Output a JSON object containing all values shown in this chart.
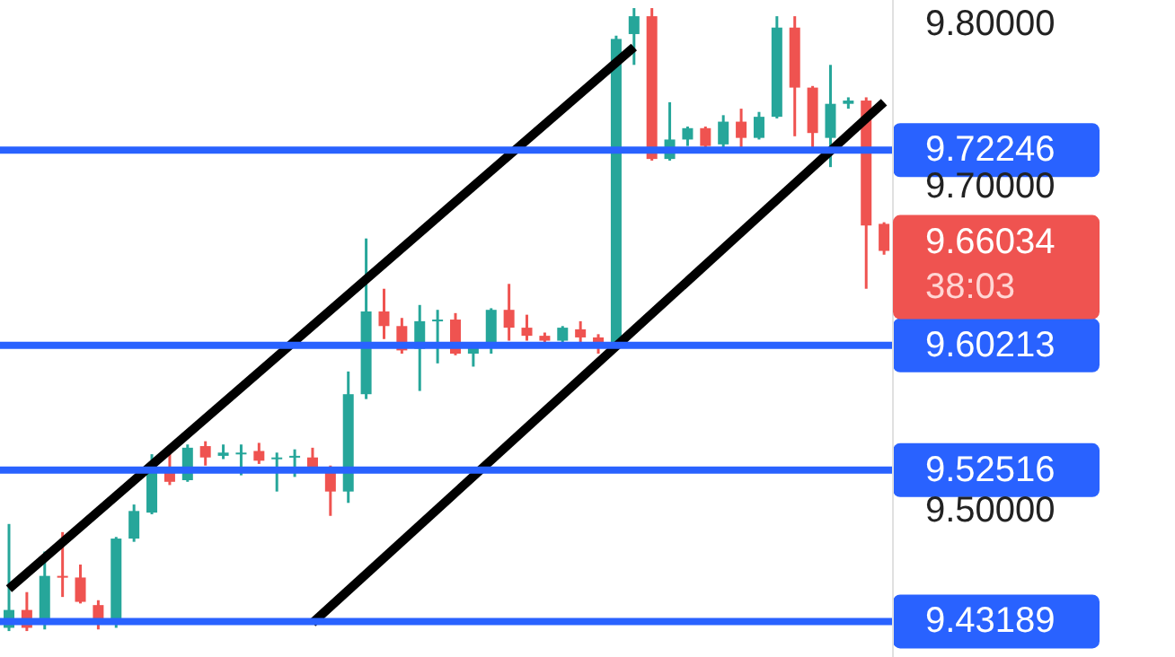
{
  "chart_data": {
    "type": "candlestick",
    "categories": [
      null,
      null,
      null,
      null,
      null,
      null,
      null,
      null,
      null,
      null,
      null,
      null,
      null,
      null,
      null,
      null,
      null,
      null,
      null,
      null,
      null,
      null,
      null,
      null,
      null,
      null,
      null,
      null,
      null,
      null,
      null,
      null,
      null,
      null,
      null,
      null,
      null,
      null,
      null,
      null,
      null,
      null,
      null,
      null,
      null,
      null,
      null,
      null,
      null,
      null
    ],
    "ohlc": [
      [
        9.428,
        9.492,
        9.426,
        9.439
      ],
      [
        9.439,
        9.45,
        9.426,
        9.428
      ],
      [
        9.43,
        9.475,
        9.427,
        9.46
      ],
      [
        9.46,
        9.487,
        9.447,
        9.459
      ],
      [
        9.459,
        9.467,
        9.443,
        9.444
      ],
      [
        9.442,
        9.445,
        9.427,
        9.432
      ],
      [
        9.43,
        9.484,
        9.428,
        9.483
      ],
      [
        9.483,
        9.504,
        9.481,
        9.5
      ],
      [
        9.499,
        9.535,
        9.498,
        9.527
      ],
      [
        9.527,
        9.537,
        9.516,
        9.518
      ],
      [
        9.519,
        9.541,
        9.518,
        9.539
      ],
      [
        9.54,
        9.543,
        9.528,
        9.533
      ],
      [
        9.534,
        9.541,
        9.532,
        9.536
      ],
      [
        9.535,
        9.541,
        9.522,
        9.536
      ],
      [
        9.537,
        9.542,
        9.529,
        9.531
      ],
      [
        9.532,
        9.536,
        9.512,
        9.533
      ],
      [
        9.533,
        9.538,
        9.521,
        9.534
      ],
      [
        9.533,
        9.539,
        9.526,
        9.527
      ],
      [
        9.527,
        9.528,
        9.497,
        9.512
      ],
      [
        9.512,
        9.586,
        9.505,
        9.572
      ],
      [
        9.572,
        9.668,
        9.569,
        9.623
      ],
      [
        9.623,
        9.637,
        9.606,
        9.614
      ],
      [
        9.614,
        9.619,
        9.597,
        9.599
      ],
      [
        9.6,
        9.627,
        9.574,
        9.617
      ],
      [
        9.617,
        9.624,
        9.591,
        9.618
      ],
      [
        9.618,
        9.622,
        9.596,
        9.597
      ],
      [
        9.597,
        9.603,
        9.589,
        9.601
      ],
      [
        9.601,
        9.625,
        9.597,
        9.624
      ],
      [
        9.624,
        9.64,
        9.605,
        9.613
      ],
      [
        9.613,
        9.621,
        9.605,
        9.608
      ],
      [
        9.608,
        9.61,
        9.604,
        9.605
      ],
      [
        9.605,
        9.614,
        9.604,
        9.613
      ],
      [
        9.612,
        9.617,
        9.604,
        9.607
      ],
      [
        9.607,
        9.609,
        9.597,
        9.602
      ],
      [
        9.602,
        9.793,
        9.601,
        9.791
      ],
      [
        9.794,
        9.81,
        9.775,
        9.805
      ],
      [
        9.805,
        9.81,
        9.716,
        9.717
      ],
      [
        9.717,
        9.752,
        9.716,
        9.729
      ],
      [
        9.729,
        9.737,
        9.725,
        9.736
      ],
      [
        9.736,
        9.737,
        9.723,
        9.725
      ],
      [
        9.726,
        9.744,
        9.723,
        9.74
      ],
      [
        9.74,
        9.748,
        9.722,
        9.73
      ],
      [
        9.73,
        9.746,
        9.729,
        9.743
      ],
      [
        9.743,
        9.805,
        9.742,
        9.798
      ],
      [
        9.798,
        9.805,
        9.731,
        9.761
      ],
      [
        9.761,
        9.762,
        9.722,
        9.733
      ],
      [
        9.73,
        9.775,
        9.712,
        9.751
      ],
      [
        9.751,
        9.755,
        9.748,
        9.753
      ],
      [
        9.753,
        9.755,
        9.637,
        9.676
      ],
      [
        9.677,
        9.678,
        9.658,
        9.66034
      ]
    ],
    "colors": [
      "#26a69a",
      "#ef5350",
      "#26a69a",
      "#ef5350",
      "#ef5350",
      "#ef5350",
      "#26a69a",
      "#26a69a",
      "#26a69a",
      "#ef5350",
      "#26a69a",
      "#ef5350",
      "#26a69a",
      "#26a69a",
      "#ef5350",
      "#26a69a",
      "#26a69a",
      "#ef5350",
      "#ef5350",
      "#26a69a",
      "#26a69a",
      "#ef5350",
      "#ef5350",
      "#26a69a",
      "#26a69a",
      "#ef5350",
      "#26a69a",
      "#26a69a",
      "#ef5350",
      "#ef5350",
      "#ef5350",
      "#26a69a",
      "#ef5350",
      "#ef5350",
      "#26a69a",
      "#26a69a",
      "#ef5350",
      "#26a69a",
      "#26a69a",
      "#ef5350",
      "#26a69a",
      "#ef5350",
      "#26a69a",
      "#26a69a",
      "#ef5350",
      "#ef5350",
      "#26a69a",
      "#26a69a",
      "#ef5350",
      "#ef5350"
    ],
    "ylim": [
      9.41,
      9.815
    ],
    "yticks": [
      {
        "value": 9.5,
        "label": "9.50000"
      },
      {
        "value": 9.7,
        "label": "9.70000"
      },
      {
        "value": 9.8,
        "label": "9.80000"
      }
    ],
    "tick_labels": "y",
    "series": [
      {
        "type": "line",
        "color": "#000000",
        "values": [
          9.452,
          null,
          null,
          null,
          null,
          null,
          null,
          null,
          null,
          null,
          null,
          null,
          null,
          null,
          null,
          null,
          null,
          null,
          null,
          null,
          null,
          null,
          null,
          null,
          null,
          null,
          null,
          null,
          null,
          null,
          null,
          null,
          null,
          null,
          null,
          9.786,
          null,
          null,
          null,
          null,
          null,
          null,
          null,
          null,
          null,
          null,
          null,
          null,
          null,
          null
        ]
      },
      {
        "type": "line",
        "color": "#000000",
        "values": [
          null,
          null,
          null,
          null,
          null,
          null,
          null,
          null,
          null,
          null,
          null,
          null,
          null,
          null,
          null,
          null,
          null,
          9.431,
          null,
          null,
          null,
          null,
          null,
          null,
          null,
          null,
          null,
          null,
          null,
          null,
          null,
          null,
          null,
          null,
          null,
          null,
          null,
          null,
          null,
          null,
          null,
          null,
          null,
          null,
          null,
          null,
          null,
          null,
          null,
          9.752
        ]
      }
    ],
    "ref_lines": [
      {
        "axis": "y",
        "value": 9.72246,
        "label": "9.72246",
        "color": "#2962ff"
      },
      {
        "axis": "y",
        "value": 9.60213,
        "label": "9.60213",
        "color": "#2962ff"
      },
      {
        "axis": "y",
        "value": 9.52516,
        "label": "9.52516",
        "color": "#2962ff"
      },
      {
        "axis": "y",
        "value": 9.43189,
        "label": "9.43189",
        "color": "#2962ff"
      }
    ],
    "annotations": [
      "9.66034",
      "38:03"
    ]
  }
}
